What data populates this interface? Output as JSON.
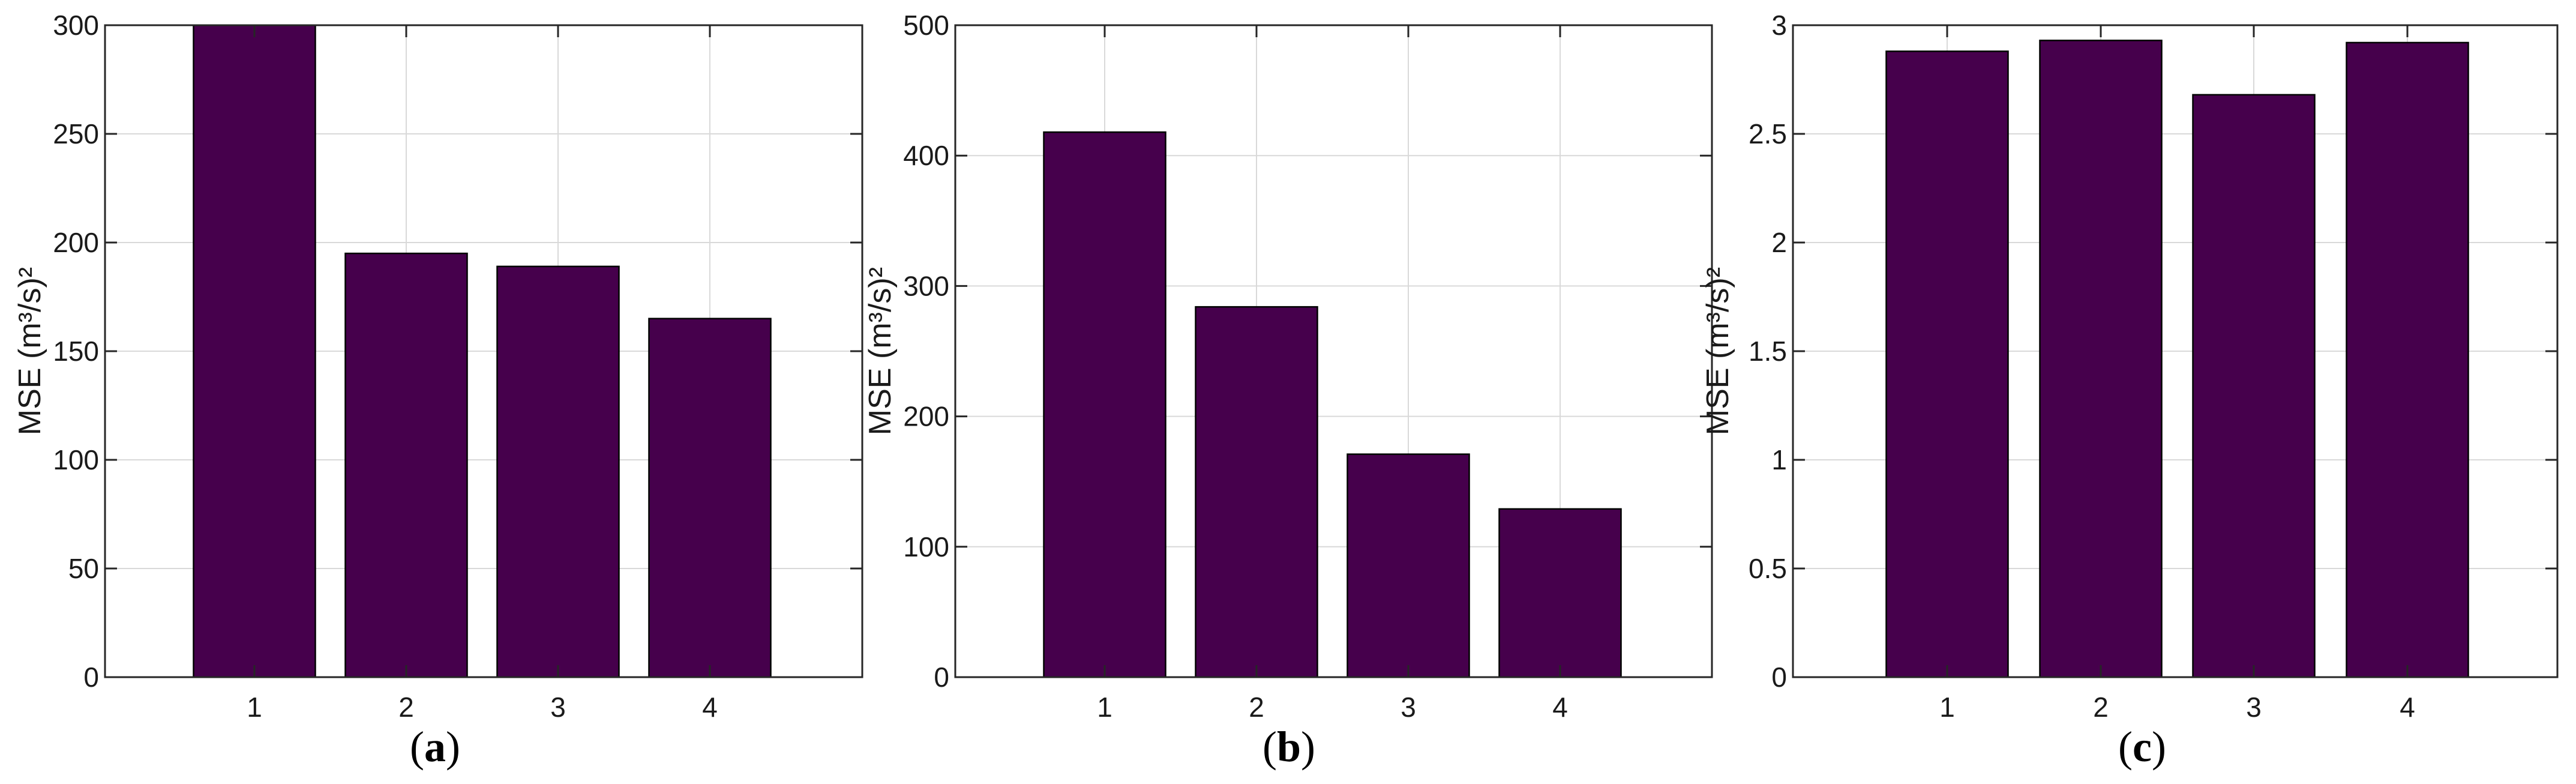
{
  "colors": {
    "bar": "#46004C"
  },
  "chart_data": [
    {
      "type": "bar",
      "panel_label": "a",
      "categories": [
        "1",
        "2",
        "3",
        "4"
      ],
      "values": [
        300,
        195,
        189,
        165
      ],
      "ylim": [
        0,
        300
      ],
      "yticks": [
        0,
        50,
        100,
        150,
        200,
        250,
        300
      ],
      "ylabel": "MSE (m³/s)²",
      "grid": true
    },
    {
      "type": "bar",
      "panel_label": "b",
      "categories": [
        "1",
        "2",
        "3",
        "4"
      ],
      "values": [
        418,
        284,
        171,
        129
      ],
      "ylim": [
        0,
        500
      ],
      "yticks": [
        0,
        100,
        200,
        300,
        400,
        500
      ],
      "ylabel": "MSE (m³/s)²",
      "grid": true
    },
    {
      "type": "bar",
      "panel_label": "c",
      "categories": [
        "1",
        "2",
        "3",
        "4"
      ],
      "values": [
        2.88,
        2.93,
        2.68,
        2.92
      ],
      "ylim": [
        0,
        3
      ],
      "yticks": [
        0,
        0.5,
        1,
        1.5,
        2,
        2.5,
        3
      ],
      "ylabel": "MSE (m³/s)²",
      "grid": true
    }
  ]
}
